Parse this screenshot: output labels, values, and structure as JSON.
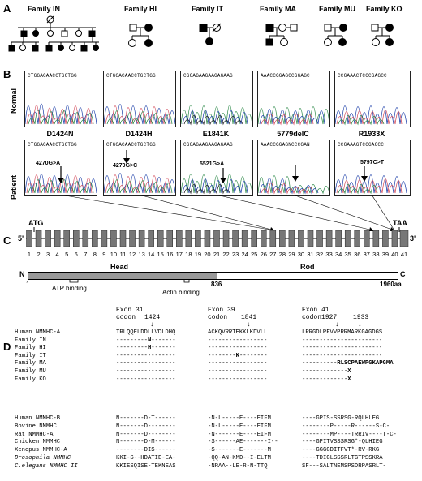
{
  "panels": {
    "a": "A",
    "b": "B",
    "c": "C",
    "d": "D"
  },
  "families": [
    "Family IN",
    "Family HI",
    "Family IT",
    "Family MA",
    "Family MU",
    "Family KO"
  ],
  "row_labels": {
    "normal": "Normal",
    "patient": "Patient"
  },
  "normal_seqs": [
    "CTGGACAACCTGCTGG",
    "CTGGACAACCTGCTGG",
    "CGGAGAAGAAGAGAAG",
    "AAACCGGAGCCGGAGC",
    "CCGAAACTCCCGAGCC"
  ],
  "mutations": [
    {
      "name": "D1424N",
      "nt": "4270G>A",
      "seq": "CTGGACAACCTGCTGG"
    },
    {
      "name": "D1424H",
      "nt": "4270G>C",
      "seq": "CTGCACAACCTGCTGG"
    },
    {
      "name": "E1841K",
      "nt": "5521G>A",
      "seq": "CGGAGAAGAAGAGAAG"
    },
    {
      "name": "5779delC",
      "nt": "",
      "seq": "AAACCGGAGNCCCGAN"
    },
    {
      "name": "R1933X",
      "nt": "5797C>T",
      "seq": "CCGAAAGTCCGAGCC"
    }
  ],
  "gene": {
    "atg": "ATG",
    "taa": "TAA",
    "five": "5'",
    "three": "3'",
    "exons": [
      "1",
      "2",
      "3",
      "4",
      "5",
      "6",
      "7",
      "8",
      "9",
      "10",
      "11",
      "12",
      "13",
      "14",
      "15",
      "16",
      "17",
      "18",
      "19",
      "20",
      "21",
      "22",
      "23",
      "24",
      "25",
      "26",
      "27",
      "28",
      "29",
      "30",
      "31",
      "32",
      "33",
      "34",
      "35",
      "36",
      "37",
      "38",
      "39",
      "40",
      "41"
    ]
  },
  "protein": {
    "n": "N",
    "c": "C",
    "start": "1",
    "boundary": "836",
    "end": "1960aa",
    "head": "Head",
    "rod": "Rod",
    "atp": "ATP binding",
    "actin": "Actin binding"
  },
  "alignment": {
    "exon_headers": [
      {
        "exon": "Exon 31",
        "codon": "codon",
        "pos": "1424"
      },
      {
        "exon": "Exon 39",
        "codon": "codon",
        "pos": "1841"
      },
      {
        "exon": "Exon 41",
        "codon": "codon1927",
        "pos": "1933"
      }
    ],
    "rows1": [
      {
        "name": "Human NMMHC-A",
        "s1": "TRLQQELDDLLVDLDHQ",
        "s2": "ACKQVRRTEKKLKDVLL",
        "s3": "LRRGDLPFVVPRRMARKGAGDGS"
      },
      {
        "name": "Family IN",
        "s1": "---------N-------",
        "s2": "",
        "s3": ""
      },
      {
        "name": "Family HI",
        "s1": "---------H-------",
        "s2": "",
        "s3": ""
      },
      {
        "name": "Family IT",
        "s1": "",
        "s2": "--------K--------",
        "s3": ""
      },
      {
        "name": "Family MA",
        "s1": "",
        "s2": "",
        "s3": "----------RLSCPAEWPGKAPGMA"
      },
      {
        "name": "Family MU",
        "s1": "",
        "s2": "",
        "s3": "-------------X"
      },
      {
        "name": "Family KO",
        "s1": "",
        "s2": "",
        "s3": "-------------X"
      }
    ],
    "rows2": [
      {
        "name": "Human NMMHC-B",
        "italic": false,
        "s1": "N-------D-T------",
        "s2": "-N-L-----E----EIFM",
        "s3": "----GPIS-SSRSG-RQLHLEG"
      },
      {
        "name": "Bovine NMMHC",
        "italic": false,
        "s1": "N-------D--------",
        "s2": "-N-L-----E----EIFM",
        "s3": "--------P-----R------S-C-"
      },
      {
        "name": "Rat NMMHC-A",
        "italic": false,
        "s1": "N-------D--------",
        "s2": "-N-------E----EIFM",
        "s3": "--------MP----TRRIV----T-C-"
      },
      {
        "name": "Chicken NMMHC",
        "italic": false,
        "s1": "N-------D-M------",
        "s2": "-S------AE-------I--",
        "s3": "----GPITVSSSRSG*-QLHIEG"
      },
      {
        "name": "Xenopus NMMHC-A",
        "italic": false,
        "s1": "--------DIS------",
        "s2": "-S-------E-------M",
        "s3": "----GGGGDITFVT*-RV-RKG"
      },
      {
        "name": "Drosophila NMMHC",
        "italic": true,
        "s1": "KKI-S--HDATIE-EA-",
        "s2": "-QQ-AN-KMD--I-ELTM",
        "s3": "----TDIGLSSSRLTGTPSSKRA"
      },
      {
        "name": "C.elegans NMMHC II",
        "italic": true,
        "s1": "KKIESQISE-TEKNEAS",
        "s2": "-NRAA--LE-R-N-TTQ",
        "s3": "SF---SALTNEMSPSDRPASRLT-"
      }
    ]
  }
}
